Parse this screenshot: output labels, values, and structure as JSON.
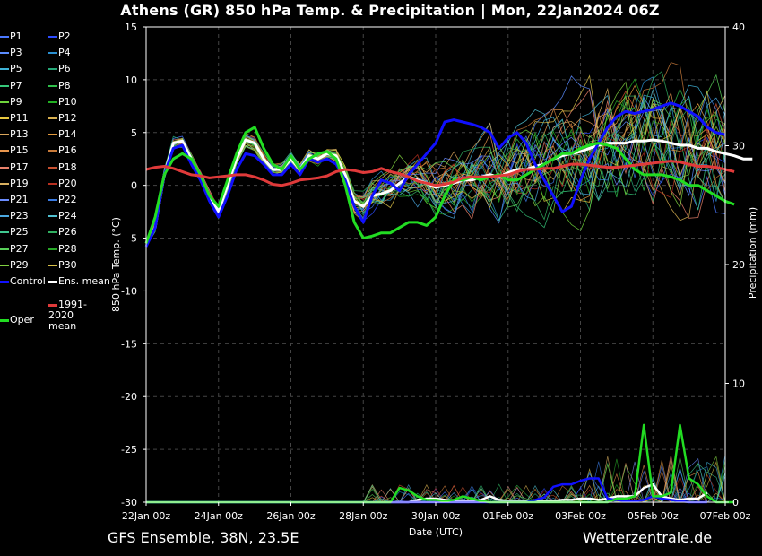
{
  "title": "Athens  (GR)  850 hPa Temp. & Precipitation | Mon, 22Jan2024 06Z",
  "footer_left": "GFS Ensemble, 38N, 23.5E",
  "footer_right": "Wetterzentrale.de",
  "legend": [
    {
      "label": "P1",
      "color": "#4a78ff"
    },
    {
      "label": "P2",
      "color": "#2d4cff"
    },
    {
      "label": "P3",
      "color": "#5b8cff"
    },
    {
      "label": "P4",
      "color": "#2a8fd0"
    },
    {
      "label": "P5",
      "color": "#3fb3d8"
    },
    {
      "label": "P6",
      "color": "#26a878"
    },
    {
      "label": "P7",
      "color": "#36c87a"
    },
    {
      "label": "P8",
      "color": "#2fbf4a"
    },
    {
      "label": "P9",
      "color": "#6fd43b"
    },
    {
      "label": "P10",
      "color": "#22b022"
    },
    {
      "label": "P11",
      "color": "#e8c840"
    },
    {
      "label": "P12",
      "color": "#d8b050"
    },
    {
      "label": "P13",
      "color": "#d9a55b"
    },
    {
      "label": "P14",
      "color": "#e39a3e"
    },
    {
      "label": "P15",
      "color": "#e8964e"
    },
    {
      "label": "P16",
      "color": "#c87a3a"
    },
    {
      "label": "P17",
      "color": "#e8806a"
    },
    {
      "label": "P18",
      "color": "#c85030"
    },
    {
      "label": "P19",
      "color": "#d9b060"
    },
    {
      "label": "P20",
      "color": "#b83020"
    },
    {
      "label": "P21",
      "color": "#6a8cff"
    },
    {
      "label": "P22",
      "color": "#3a7ae0"
    },
    {
      "label": "P23",
      "color": "#4aa8e0"
    },
    {
      "label": "P24",
      "color": "#50c0d0"
    },
    {
      "label": "P25",
      "color": "#40c890"
    },
    {
      "label": "P26",
      "color": "#30b060"
    },
    {
      "label": "P27",
      "color": "#58d058"
    },
    {
      "label": "P28",
      "color": "#28a828"
    },
    {
      "label": "P29",
      "color": "#80d040"
    },
    {
      "label": "P30",
      "color": "#d8c048"
    },
    {
      "label": "Control",
      "color": "#1010ff"
    },
    {
      "label": "Ens. mean",
      "color": "#ffffff"
    },
    {
      "label": "1991-2020 mean",
      "color": "#e03a3a"
    },
    {
      "label": "Oper",
      "color": "#22dd22"
    }
  ],
  "chart_data": {
    "type": "line",
    "title": "Athens  (GR)  850 hPa Temp. & Precipitation | Mon, 22Jan2024 06Z",
    "xlabel": "Date (UTC)",
    "ylabel_left": "850 hPa Temp. (°C)",
    "ylabel_right": "Precipitation (mm)",
    "ylim_left": [
      -30,
      15
    ],
    "ylim_right": [
      0,
      40
    ],
    "yticks_left": [
      "15",
      "10",
      "5",
      "0",
      "-5",
      "-10",
      "-15",
      "-20",
      "-25",
      "-30"
    ],
    "yticks_right": [
      "40",
      "30",
      "20",
      "10",
      "0"
    ],
    "xticks": [
      "22Jan 00z",
      "24Jan 00z",
      "26Jan 00z",
      "28Jan 00z",
      "30Jan 00z",
      "01Feb 00z",
      "03Feb 00z",
      "05Feb 00z",
      "07Feb 00z"
    ],
    "x_start": "2024-01-22 00z",
    "x_end": "2024-02-07 00z",
    "step_hours": 6,
    "grid": true,
    "legend_placement": "left",
    "series": [
      {
        "name": "Ens. mean",
        "axis": "temp",
        "color": "#ffffff",
        "values": [
          -5.5,
          -4,
          1,
          4,
          4.2,
          2.5,
          1,
          -1,
          -2.5,
          0,
          2.5,
          4.3,
          4,
          2.5,
          1.5,
          1.5,
          2.5,
          1.5,
          2.8,
          2.5,
          3,
          2.8,
          1,
          -1.5,
          -2,
          -1,
          -0.8,
          -0.5,
          0.2,
          0.8,
          0.5,
          0.2,
          -0.2,
          0,
          0.2,
          0.5,
          0.5,
          0.8,
          1,
          0.8,
          1.2,
          1.5,
          1.5,
          1.8,
          2,
          2.5,
          2.8,
          3,
          3.2,
          3.5,
          3.8,
          4,
          4,
          4,
          4.2,
          4.2,
          4.3,
          4.2,
          4,
          3.8,
          3.8,
          3.5,
          3.5,
          3.2,
          3,
          2.8,
          2.5,
          2.5
        ]
      },
      {
        "name": "Control",
        "axis": "temp",
        "color": "#1010ff",
        "values": [
          -5.8,
          -4,
          1,
          3.5,
          3.8,
          2,
          0.5,
          -1.5,
          -3,
          -1,
          1.5,
          3,
          2.8,
          2,
          1,
          1,
          2,
          1,
          2.5,
          2.2,
          2.5,
          2,
          0.5,
          -2,
          -3.5,
          -1,
          0.5,
          0.2,
          -0.5,
          1,
          2,
          3,
          4,
          6,
          6.2,
          6,
          5.8,
          5.5,
          5,
          3.5,
          4.5,
          5,
          4,
          2,
          0.5,
          -1,
          -2.5,
          -2,
          0.5,
          2.5,
          4,
          5.5,
          6.5,
          7,
          6.8,
          7,
          7.2,
          7.5,
          7.8,
          7.5,
          7,
          6.5,
          5.5,
          5,
          4.8
        ]
      },
      {
        "name": "Oper",
        "axis": "temp",
        "color": "#22dd22",
        "values": [
          -5.5,
          -3,
          1,
          2.5,
          3,
          2.5,
          1,
          -1,
          -2,
          0.5,
          3,
          5,
          5.5,
          3.5,
          2,
          1.5,
          2.8,
          1.5,
          2.5,
          3,
          3.2,
          2.5,
          0,
          -3.5,
          -5,
          -4.8,
          -4.5,
          -4.5,
          -4,
          -3.5,
          -3.5,
          -3.8,
          -3,
          -1,
          0.5,
          0.5,
          0.8,
          0.5,
          0.8,
          1,
          0.5,
          0.5,
          1,
          1.5,
          2,
          2.5,
          3,
          3,
          3.5,
          3.8,
          4,
          3.8,
          3.5,
          2.5,
          1.5,
          1,
          1,
          1,
          0.8,
          0.5,
          0,
          0,
          -0.5,
          -1,
          -1.5,
          -1.8
        ]
      },
      {
        "name": "1991-2020 mean",
        "axis": "temp",
        "color": "#e03a3a",
        "values": [
          1.5,
          1.7,
          1.8,
          1.6,
          1.3,
          1,
          0.9,
          0.7,
          0.8,
          0.9,
          1,
          1,
          0.8,
          0.5,
          0.1,
          0,
          0.2,
          0.5,
          0.6,
          0.7,
          0.9,
          1.3,
          1.5,
          1.4,
          1.2,
          1.3,
          1.6,
          1.3,
          1.1,
          0.8,
          0.4,
          0.2,
          0,
          0.1,
          0.3,
          0.7,
          0.8,
          0.8,
          0.8,
          0.9,
          1,
          1.3,
          1.5,
          1.5,
          1.6,
          1.6,
          1.8,
          2,
          2,
          1.9,
          1.8,
          1.7,
          1.7,
          1.8,
          1.9,
          2,
          2.1,
          2.2,
          2.3,
          2.2,
          2,
          1.8,
          1.8,
          1.7,
          1.5,
          1.3
        ]
      },
      {
        "name": "Ens. mean precipitation",
        "axis": "precip",
        "color": "#ffffff",
        "values": [
          0,
          0,
          0,
          0,
          0,
          0,
          0,
          0,
          0,
          0,
          0,
          0,
          0,
          0,
          0,
          0,
          0,
          0,
          0,
          0,
          0,
          0,
          0,
          0,
          0,
          0,
          0,
          0,
          0,
          0,
          0.2,
          0.3,
          0.3,
          0.2,
          0.1,
          0.1,
          0.1,
          0.2,
          0.5,
          0.2,
          0.1,
          0.1,
          0.1,
          0.1,
          0.1,
          0.1,
          0.2,
          0.2,
          0.3,
          0.3,
          0.2,
          0.3,
          0.5,
          0.5,
          0.5,
          1.2,
          1.5,
          0.5,
          0.3,
          0.2,
          0.3,
          0.3,
          0.8
        ]
      },
      {
        "name": "Control precipitation",
        "axis": "precip",
        "color": "#1010ff",
        "values": [
          0,
          0,
          0,
          0,
          0,
          0,
          0,
          0,
          0,
          0,
          0,
          0,
          0,
          0,
          0,
          0,
          0,
          0,
          0,
          0,
          0,
          0,
          0,
          0,
          0,
          0,
          0,
          0,
          0,
          0,
          0,
          0,
          0,
          0,
          0,
          0,
          0,
          0,
          0,
          0,
          0,
          0,
          0,
          0.2,
          0.4,
          1.3,
          1.5,
          1.5,
          1.8,
          2,
          2,
          0.3,
          0.2,
          0.1,
          0.1,
          0.2,
          0.5,
          0.3,
          0.2,
          0.1,
          0,
          0,
          0
        ]
      },
      {
        "name": "Oper precipitation",
        "axis": "precip",
        "color": "#22dd22",
        "values": [
          0,
          0,
          0,
          0,
          0,
          0,
          0,
          0,
          0,
          0,
          0,
          0,
          0,
          0,
          0,
          0,
          0,
          0,
          0,
          0,
          0,
          0,
          0,
          0,
          0,
          0,
          0,
          0,
          1.2,
          1.0,
          0.5,
          0.2,
          0.2,
          0.1,
          0.2,
          0.5,
          0.3,
          0.1,
          0,
          0,
          0,
          0,
          0,
          0,
          0,
          0,
          0,
          0,
          0,
          0,
          0,
          0,
          0.3,
          0.3,
          0.5,
          6.5,
          0.5,
          0.5,
          0.8,
          6.5,
          2,
          1.5,
          0.5,
          0,
          0,
          0
        ]
      }
    ]
  }
}
